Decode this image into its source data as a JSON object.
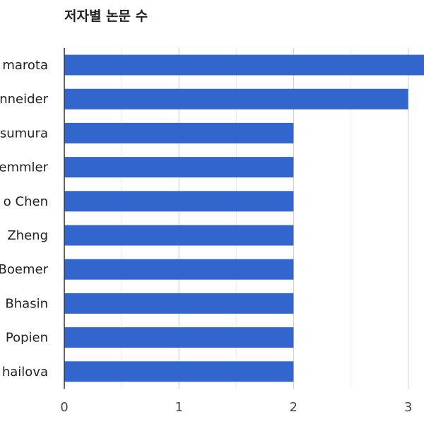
{
  "chart_data": {
    "type": "bar",
    "orientation": "horizontal",
    "title": "저자별 논문 수",
    "xlabel": "",
    "ylabel": "",
    "categories": [
      "marota",
      "nneider",
      "sumura",
      "emmler",
      "o Chen",
      "Zheng",
      "Boemer",
      "Bhasin",
      "Popien",
      "hailova"
    ],
    "values": [
      3.15,
      3,
      2,
      2,
      2,
      2,
      2,
      2,
      2,
      2
    ],
    "x_ticks": [
      "0",
      "1",
      "2",
      "3"
    ],
    "xlim": [
      0,
      3.15
    ],
    "grid": true,
    "bar_color": "#3366cc"
  }
}
